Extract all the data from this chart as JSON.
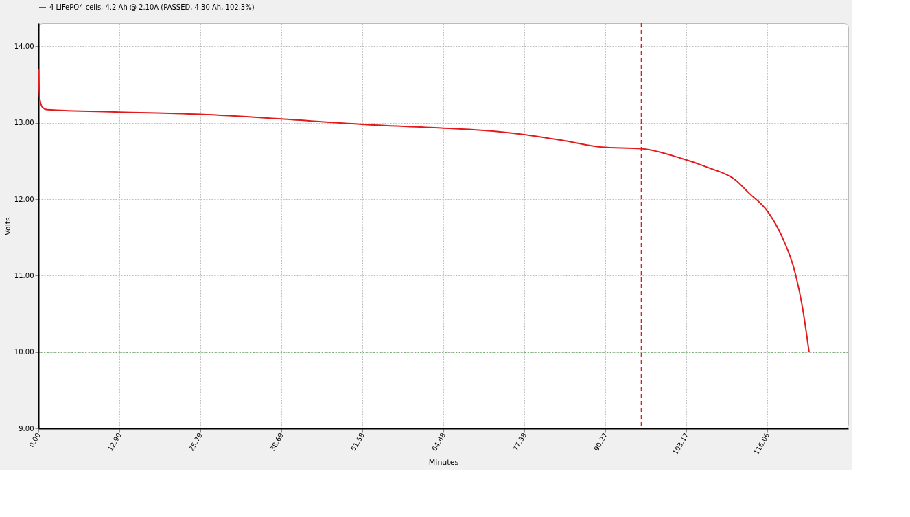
{
  "chart_data": {
    "type": "line",
    "xlabel": "Minutes",
    "ylabel": "Volts",
    "x": [
      0,
      0.21,
      0.64,
      1.38,
      12.87,
      25.85,
      38.62,
      51.38,
      64.15,
      70.53,
      76.91,
      83.3,
      89.68,
      95.96,
      102.45,
      106.7,
      110.96,
      113.09,
      116.06,
      118.4,
      120.5,
      121.6,
      122.66
    ],
    "series": [
      {
        "name": "4 LiFePO4 cells, 4.2 Ah @ 2.10A (PASSED, 4.30 Ah, 102.3%)",
        "color": "#e31a1c",
        "values": [
          13.7,
          13.32,
          13.2,
          13.17,
          13.14,
          13.11,
          13.05,
          12.98,
          12.93,
          12.9,
          12.85,
          12.77,
          12.68,
          12.66,
          12.53,
          12.41,
          12.25,
          12.08,
          11.84,
          11.5,
          11.02,
          10.59,
          10.0
        ]
      }
    ],
    "xlim": [
      0,
      128.9
    ],
    "ylim": [
      9,
      14.3
    ],
    "xticks": [
      {
        "value": 0,
        "label": "0.00"
      },
      {
        "value": 12.9,
        "label": "12.90"
      },
      {
        "value": 25.79,
        "label": "25.79"
      },
      {
        "value": 38.69,
        "label": "38.69"
      },
      {
        "value": 51.58,
        "label": "51.58"
      },
      {
        "value": 64.48,
        "label": "64.48"
      },
      {
        "value": 77.38,
        "label": "77.38"
      },
      {
        "value": 90.27,
        "label": "90.27"
      },
      {
        "value": 103.17,
        "label": "103.17"
      },
      {
        "value": 116.06,
        "label": "116.06"
      }
    ],
    "yticks": [
      {
        "value": 9,
        "label": "9.00"
      },
      {
        "value": 10,
        "label": "10.00"
      },
      {
        "value": 11,
        "label": "11.00"
      },
      {
        "value": 12,
        "label": "12.00"
      },
      {
        "value": 13,
        "label": "13.00"
      },
      {
        "value": 14,
        "label": "14.00"
      }
    ],
    "ref_lines": [
      {
        "axis": "x",
        "value": 95.96,
        "label": null,
        "color": "#e31a1c",
        "line_style": "dashed"
      },
      {
        "axis": "y",
        "value": 10.0,
        "label": null,
        "color": "#1a9a1a",
        "line_style": "dotted"
      }
    ],
    "grid": true,
    "legend": "top",
    "marker": "none",
    "line_style": "solid"
  }
}
